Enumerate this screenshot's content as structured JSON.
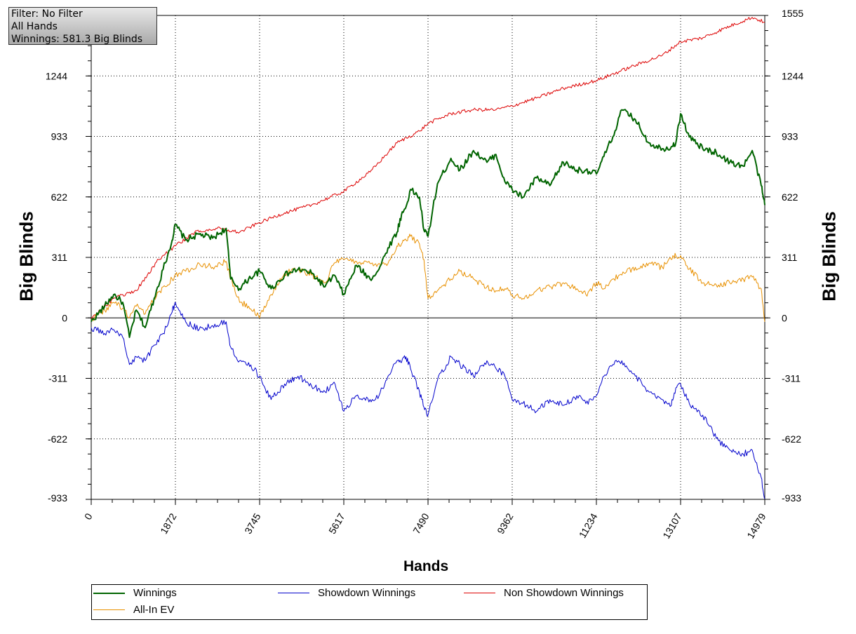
{
  "filter_box": {
    "line1": "Filter: No Filter",
    "line2": "All Hands",
    "line3": "Winnings: 581.3 Big Blinds"
  },
  "chart_data": {
    "type": "line",
    "xlabel": "Hands",
    "ylabel": "Big Blinds",
    "xlim": [
      0,
      14979
    ],
    "ylim": [
      -933,
      1555
    ],
    "x_ticks": [
      0,
      1872,
      3745,
      5617,
      7490,
      9362,
      11234,
      13107,
      14979
    ],
    "y_ticks": [
      -933,
      -622,
      -311,
      0,
      311,
      622,
      933,
      1244,
      1555
    ],
    "grid": true,
    "legend_position": "bottom",
    "series": [
      {
        "name": "Winnings",
        "color": "#006400",
        "x": [
          0,
          300,
          500,
          700,
          850,
          1000,
          1200,
          1400,
          1600,
          1800,
          1872,
          2100,
          2400,
          2700,
          3000,
          3100,
          3300,
          3500,
          3745,
          4000,
          4300,
          4600,
          4900,
          5200,
          5400,
          5617,
          5900,
          6200,
          6400,
          6600,
          6800,
          6900,
          7000,
          7100,
          7300,
          7400,
          7490,
          7700,
          8000,
          8200,
          8500,
          8800,
          9000,
          9200,
          9362,
          9600,
          9900,
          10200,
          10500,
          10800,
          11000,
          11234,
          11400,
          11600,
          11800,
          12100,
          12400,
          12700,
          12900,
          13000,
          13107,
          13300,
          13600,
          13900,
          14200,
          14500,
          14700,
          14900,
          14979
        ],
        "y": [
          -20,
          60,
          120,
          80,
          -100,
          40,
          -50,
          100,
          250,
          400,
          480,
          400,
          430,
          410,
          460,
          200,
          150,
          200,
          240,
          150,
          220,
          250,
          230,
          160,
          220,
          120,
          270,
          200,
          250,
          360,
          440,
          530,
          570,
          660,
          620,
          450,
          420,
          690,
          820,
          760,
          860,
          800,
          840,
          700,
          660,
          620,
          720,
          680,
          800,
          760,
          760,
          740,
          830,
          930,
          1070,
          1020,
          900,
          870,
          880,
          900,
          1050,
          930,
          870,
          850,
          800,
          780,
          860,
          680,
          580
        ]
      },
      {
        "name": "Showdown Winnings",
        "color": "#0000cc",
        "x": [
          0,
          300,
          500,
          700,
          850,
          1000,
          1200,
          1400,
          1600,
          1800,
          1872,
          2100,
          2400,
          2700,
          3000,
          3100,
          3300,
          3500,
          3745,
          4000,
          4300,
          4600,
          4900,
          5200,
          5400,
          5617,
          5900,
          6200,
          6400,
          6600,
          6800,
          6900,
          7000,
          7100,
          7300,
          7400,
          7490,
          7700,
          8000,
          8200,
          8500,
          8800,
          9000,
          9200,
          9362,
          9600,
          9900,
          10200,
          10500,
          10800,
          11000,
          11234,
          11400,
          11600,
          11800,
          12100,
          12400,
          12700,
          12900,
          13000,
          13107,
          13300,
          13600,
          13900,
          14200,
          14500,
          14700,
          14900,
          14979
        ],
        "y": [
          -50,
          -80,
          -60,
          -100,
          -240,
          -200,
          -220,
          -140,
          -80,
          30,
          80,
          -20,
          -60,
          -40,
          -20,
          -150,
          -220,
          -230,
          -300,
          -420,
          -340,
          -300,
          -350,
          -380,
          -330,
          -480,
          -400,
          -420,
          -400,
          -300,
          -220,
          -230,
          -200,
          -260,
          -380,
          -460,
          -500,
          -320,
          -200,
          -240,
          -300,
          -220,
          -260,
          -300,
          -420,
          -440,
          -480,
          -420,
          -450,
          -400,
          -440,
          -400,
          -300,
          -240,
          -220,
          -300,
          -380,
          -420,
          -450,
          -360,
          -340,
          -440,
          -500,
          -620,
          -680,
          -700,
          -680,
          -820,
          -930
        ]
      },
      {
        "name": "Non Showdown Winnings",
        "color": "#dd0000",
        "x": [
          0,
          500,
          1000,
          1500,
          1872,
          2300,
          2800,
          3300,
          3745,
          4300,
          4900,
          5617,
          6200,
          6800,
          7300,
          7490,
          8000,
          8500,
          9000,
          9362,
          9900,
          10500,
          11234,
          12000,
          12700,
          13107,
          13600,
          14200,
          14700,
          14979
        ],
        "y": [
          0,
          100,
          140,
          300,
          370,
          440,
          460,
          440,
          490,
          540,
          580,
          650,
          750,
          900,
          960,
          1000,
          1050,
          1070,
          1070,
          1090,
          1130,
          1180,
          1220,
          1290,
          1350,
          1420,
          1440,
          1500,
          1545,
          1520
        ]
      },
      {
        "name": "All-In EV",
        "color": "#e89000",
        "x": [
          0,
          300,
          500,
          700,
          850,
          1000,
          1200,
          1400,
          1600,
          1800,
          1872,
          2100,
          2400,
          2700,
          3000,
          3100,
          3300,
          3500,
          3745,
          4000,
          4300,
          4600,
          4900,
          5200,
          5400,
          5617,
          5900,
          6200,
          6400,
          6600,
          6800,
          6900,
          7000,
          7100,
          7300,
          7400,
          7490,
          7700,
          8000,
          8200,
          8500,
          8800,
          9000,
          9200,
          9362,
          9600,
          9900,
          10200,
          10500,
          10800,
          11000,
          11234,
          11400,
          11600,
          11800,
          12100,
          12400,
          12700,
          12900,
          13000,
          13107,
          13300,
          13600,
          13900,
          14200,
          14500,
          14700,
          14900,
          14979
        ],
        "y": [
          -10,
          40,
          80,
          50,
          0,
          60,
          20,
          100,
          160,
          200,
          220,
          240,
          280,
          260,
          290,
          200,
          80,
          60,
          0,
          120,
          230,
          250,
          220,
          180,
          280,
          300,
          290,
          280,
          280,
          280,
          370,
          380,
          400,
          420,
          380,
          300,
          100,
          140,
          200,
          240,
          200,
          160,
          140,
          150,
          120,
          100,
          140,
          160,
          180,
          150,
          120,
          180,
          150,
          200,
          220,
          260,
          280,
          260,
          300,
          320,
          320,
          250,
          180,
          170,
          180,
          200,
          210,
          150,
          -20
        ]
      }
    ]
  },
  "legend": {
    "items": [
      {
        "label": "Winnings",
        "color": "#006400"
      },
      {
        "label": "Showdown Winnings",
        "color": "#0000cc"
      },
      {
        "label": "Non Showdown Winnings",
        "color": "#dd0000"
      },
      {
        "label": "All-In EV",
        "color": "#e89000"
      }
    ]
  }
}
